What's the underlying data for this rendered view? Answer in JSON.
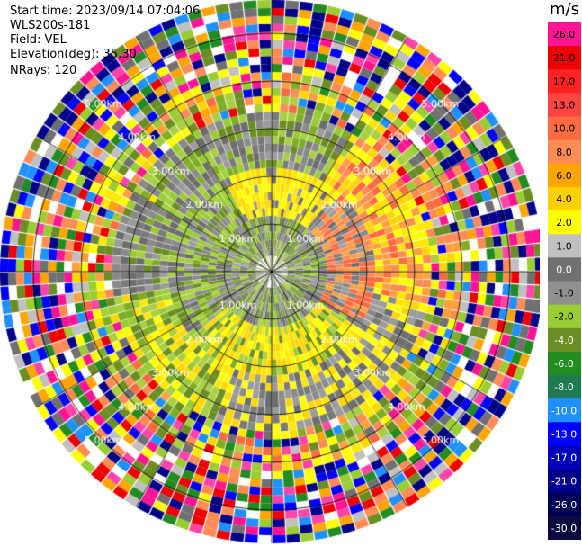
{
  "header": {
    "start_time": "Start time: 2023/09/14 07:04:06",
    "instrument": "WLS200s-181",
    "field": "Field: VEL",
    "elevation": "Elevation(deg): 35.30",
    "nrays": "NRays: 120"
  },
  "chart_data": {
    "type": "ppi",
    "field": "VEL",
    "nrays": 120,
    "range_rings_km": [
      1.0,
      2.0,
      3.0,
      4.0,
      5.0
    ],
    "ring_labels": [
      "1.00km",
      "2.00km",
      "3.00km",
      "4.00km",
      "5.00km"
    ],
    "max_range_km": 5.7,
    "gates": 34,
    "colorbar": {
      "unit": "m/s",
      "ticks": [
        "26.0",
        "21.0",
        "17.0",
        "13.0",
        "10.0",
        "8.0",
        "6.0",
        "4.0",
        "2.0",
        "1.0",
        "0.0",
        "-1.0",
        "-2.0",
        "-4.0",
        "-6.0",
        "-8.0",
        "-10.0",
        "-13.0",
        "-17.0",
        "-21.0",
        "-26.0",
        "-30.0"
      ],
      "colors": [
        "#ff1493",
        "#ee0000",
        "#ff2222",
        "#ff4444",
        "#ff6a40",
        "#ff8c55",
        "#ffa500",
        "#ffd000",
        "#ffff00",
        "#c0c0c0",
        "#707070",
        "#909090",
        "#9acd32",
        "#6b8e23",
        "#228b22",
        "#1e7b50",
        "#1e90ff",
        "#0000ff",
        "#0000bb",
        "#000088",
        "#000055",
        "#0b0b40"
      ]
    }
  }
}
